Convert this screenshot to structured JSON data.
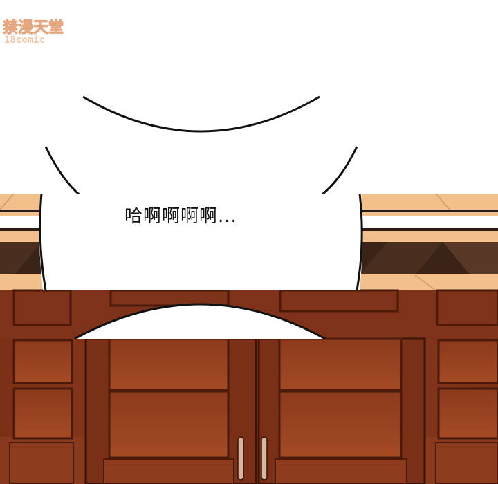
{
  "watermark": {
    "chinese": "禁漫天堂",
    "latin": "18comic"
  },
  "speech_bubble": {
    "text": "哈啊啊啊啊..."
  },
  "colors": {
    "wood_dark": "#6e2a14",
    "wood_mid": "#8f3b1f",
    "wood_light": "#a34a26",
    "floor_tile": "#f3c08b",
    "floor_dark": "#3a2418",
    "bubble_outline": "#111111",
    "watermark": "#f2c9a8"
  }
}
